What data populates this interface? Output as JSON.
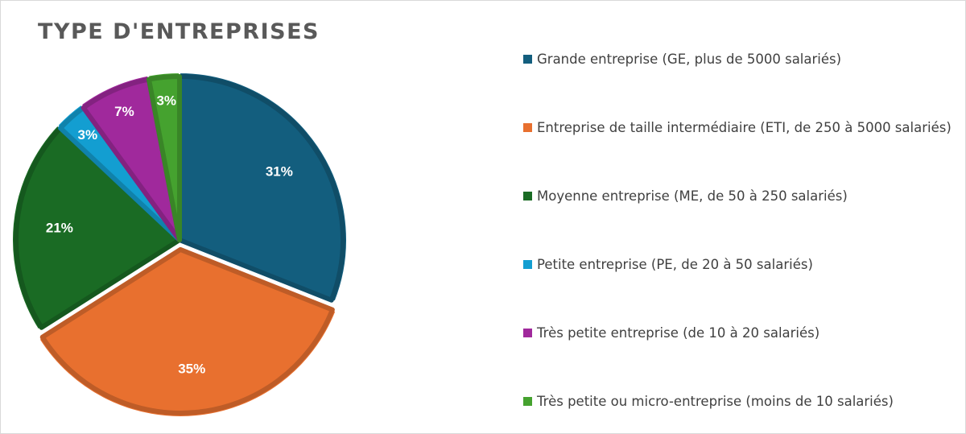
{
  "chart_data": {
    "type": "pie",
    "title": "TYPE D'ENTREPRISES",
    "categories": [
      "Grande entreprise (GE, plus de 5000 salariés)",
      "Entreprise de taille intermédiaire (ETI, de 250 à 5000 salariés)",
      "Moyenne entreprise (ME, de 50 à 250 salariés)",
      "Petite entreprise (PE, de 20 à 50 salariés)",
      "Très petite entreprise (de 10 à 20 salariés)",
      "Très petite ou micro-entreprise (moins de 10 salariés)"
    ],
    "values": [
      31,
      35,
      21,
      3,
      7,
      3
    ],
    "data_labels": [
      "31%",
      "35%",
      "21%",
      "3%",
      "7%",
      "3%"
    ],
    "colors": [
      "#135e7e",
      "#e8702f",
      "#1a6b24",
      "#139ed1",
      "#a0299c",
      "#45a22f"
    ],
    "legend_position": "right",
    "exploded_slice_index": 1
  }
}
